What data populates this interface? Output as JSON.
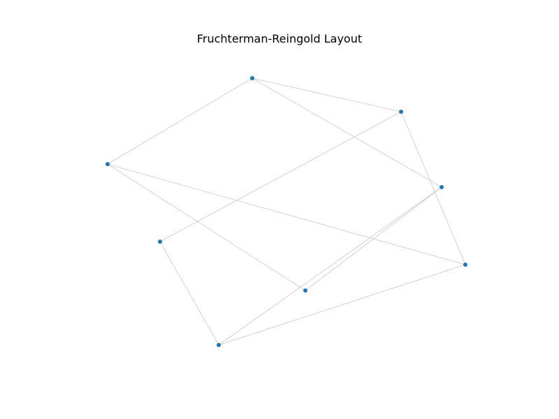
{
  "title": "Fruchterman-Reingold Layout",
  "colors": {
    "node": "#1f77b4",
    "edge": "#c8c8c8"
  },
  "nodes": [
    {
      "id": "n1"
    },
    {
      "id": "n2"
    },
    {
      "id": "n3"
    },
    {
      "id": "n4"
    },
    {
      "id": "n5"
    },
    {
      "id": "n6"
    },
    {
      "id": "n7"
    },
    {
      "id": "n8"
    }
  ],
  "edges": [
    [
      "n1",
      "n2"
    ],
    [
      "n1",
      "n3"
    ],
    [
      "n1",
      "n4"
    ],
    [
      "n2",
      "n6"
    ],
    [
      "n2",
      "n7"
    ],
    [
      "n3",
      "n5"
    ],
    [
      "n3",
      "n6"
    ],
    [
      "n4",
      "n7"
    ],
    [
      "n4",
      "n8"
    ],
    [
      "n5",
      "n8"
    ],
    [
      "n6",
      "n8"
    ]
  ]
}
